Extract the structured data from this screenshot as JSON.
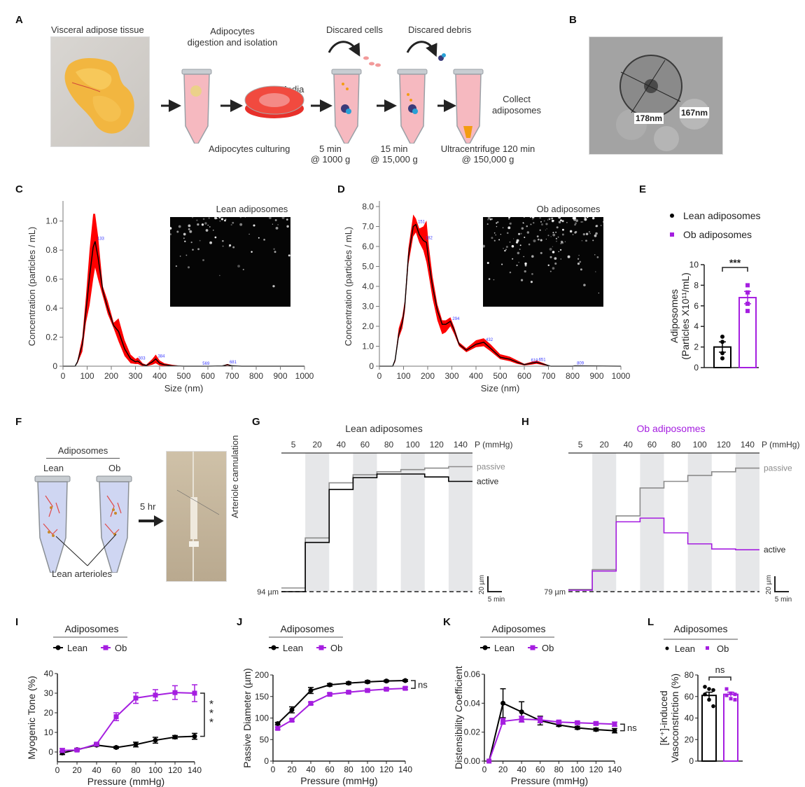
{
  "panels": {
    "A": {
      "label": "A",
      "tissue_title": "Visceral adipose tissue",
      "step1_title": "Adipocytes\ndigestion and isolation",
      "step1_line1": "Adipocytes",
      "step1_line2": "digestion and isolation",
      "culturing": "Adipocytes culturing",
      "media": "Media",
      "discard_cells": "Discared cells",
      "discard_debris": "Discared debris",
      "collect_line1": "Collect",
      "collect_line2": "adiposomes",
      "spin1_line1": "5 min",
      "spin1_line2": "@ 1000 g",
      "spin2_line1": "15 min",
      "spin2_line2": "@ 15,000 g",
      "spin3_line1": "Ultracentrifuge 120 min",
      "spin3_line2": "@ 150,000 g"
    },
    "B": {
      "label": "B",
      "measure1": "178nm",
      "measure2": "167nm"
    },
    "F": {
      "label": "F",
      "header": "Adiposomes",
      "lean": "Lean",
      "ob": "Ob",
      "arrow_label": "5 hr",
      "arterioles": "Lean arterioles",
      "cannulation": "Arteriole cannulation"
    },
    "C": {
      "label": "C"
    },
    "D": {
      "label": "D"
    },
    "E": {
      "label": "E"
    },
    "G": {
      "label": "G"
    },
    "H": {
      "label": "H"
    },
    "I": {
      "label": "I"
    },
    "J": {
      "label": "J"
    },
    "K": {
      "label": "K"
    },
    "L": {
      "label": "L"
    }
  },
  "colors": {
    "lean": "#000000",
    "ob": "#a51ee0",
    "nta_band": "#ff0000",
    "peak_label": "#3b3bff",
    "passive": "#8c8c8c",
    "shade": "#e6e7e9"
  },
  "chart_data": [
    {
      "id": "C",
      "type": "area",
      "title": "",
      "inset_title": "Lean adiposomes",
      "xlabel": "Size (nm)",
      "ylabel": "Concentration (particles / mL)",
      "xlim": [
        0,
        1000
      ],
      "ylim": [
        0,
        1.1
      ],
      "xticks": [
        0,
        100,
        200,
        300,
        400,
        500,
        600,
        700,
        800,
        900,
        1000
      ],
      "yticks": [
        0,
        0.2,
        0.4,
        0.6,
        0.8,
        1.0
      ],
      "ytick_labels": [
        "0",
        "0.2",
        "0.4",
        "0.6",
        "0.8",
        "1.0"
      ],
      "series": [
        {
          "name": "mean",
          "x": [
            0,
            50,
            60,
            80,
            95,
            110,
            125,
            133,
            145,
            165,
            185,
            210,
            230,
            255,
            280,
            300,
            310,
            330,
            345,
            370,
            384,
            400,
            420,
            450,
            500,
            560,
            600,
            660,
            681,
            700,
            740,
            1000
          ],
          "y": [
            0,
            0,
            0.03,
            0.15,
            0.38,
            0.62,
            0.82,
            0.86,
            0.75,
            0.52,
            0.4,
            0.28,
            0.24,
            0.12,
            0.05,
            0.03,
            0.035,
            0.01,
            0.005,
            0.03,
            0.05,
            0.02,
            0.01,
            0.003,
            0,
            0,
            0,
            0.002,
            0.01,
            0.003,
            0,
            0
          ]
        },
        {
          "name": "sem_upper",
          "x": [
            0,
            50,
            60,
            80,
            95,
            110,
            125,
            133,
            145,
            165,
            185,
            210,
            230,
            255,
            280,
            300,
            310,
            330,
            345,
            370,
            384,
            400,
            420,
            450,
            500,
            560,
            600,
            660,
            681,
            700,
            740,
            1000
          ],
          "y": [
            0,
            0,
            0.04,
            0.2,
            0.48,
            0.8,
            1.05,
            1.05,
            0.9,
            0.55,
            0.45,
            0.3,
            0.33,
            0.18,
            0.08,
            0.05,
            0.06,
            0.02,
            0.01,
            0.05,
            0.08,
            0.04,
            0.02,
            0.01,
            0,
            0,
            0,
            0.004,
            0.015,
            0.005,
            0,
            0
          ]
        },
        {
          "name": "sem_lower",
          "x": [
            0,
            50,
            60,
            80,
            95,
            110,
            125,
            133,
            145,
            165,
            185,
            210,
            230,
            255,
            280,
            300,
            310,
            330,
            345,
            370,
            384,
            400,
            420,
            450,
            500,
            560,
            600,
            660,
            681,
            700,
            740,
            1000
          ],
          "y": [
            0,
            0,
            0.02,
            0.1,
            0.3,
            0.42,
            0.6,
            0.68,
            0.6,
            0.48,
            0.36,
            0.26,
            0.17,
            0.07,
            0.02,
            0.015,
            0.015,
            0,
            0,
            0.01,
            0.02,
            0.005,
            0,
            0,
            0,
            0,
            0,
            0,
            0.005,
            0,
            0,
            0
          ]
        }
      ],
      "peak_labels": [
        {
          "x": 133,
          "y": 0.86,
          "text": "133"
        },
        {
          "x": 303,
          "y": 0.035,
          "text": "303"
        },
        {
          "x": 384,
          "y": 0.05,
          "text": "384"
        },
        {
          "x": 569,
          "y": 0.0,
          "text": "569"
        },
        {
          "x": 681,
          "y": 0.01,
          "text": "681"
        }
      ]
    },
    {
      "id": "D",
      "type": "area",
      "title": "",
      "inset_title": "Ob adiposomes",
      "xlabel": "Size (nm)",
      "ylabel": "Concentration (particles / mL)",
      "xlim": [
        0,
        1000
      ],
      "ylim": [
        0,
        8.0
      ],
      "xticks": [
        0,
        100,
        200,
        300,
        400,
        500,
        600,
        700,
        800,
        900,
        1000
      ],
      "yticks": [
        0,
        1,
        2,
        3,
        4,
        5,
        6,
        7,
        8
      ],
      "ytick_labels": [
        "0",
        "1.0",
        "2.0",
        "3.0",
        "4.0",
        "5.0",
        "6.0",
        "7.0",
        "8.0"
      ],
      "series": [
        {
          "name": "mean",
          "x": [
            0,
            55,
            65,
            80,
            95,
            105,
            120,
            140,
            151,
            165,
            182,
            195,
            205,
            220,
            240,
            260,
            275,
            294,
            310,
            330,
            360,
            400,
            432,
            460,
            500,
            540,
            570,
            600,
            630,
            651,
            680,
            710,
            800,
            809,
            1000
          ],
          "y": [
            0,
            0,
            0.3,
            1.6,
            2.2,
            3.0,
            5.5,
            7.0,
            7.1,
            6.6,
            6.3,
            6.2,
            5.2,
            4.0,
            2.8,
            2.1,
            2.1,
            2.25,
            1.8,
            1.1,
            0.8,
            1.1,
            1.2,
            0.9,
            0.45,
            0.35,
            0.2,
            0.08,
            0.15,
            0.2,
            0.1,
            0,
            0,
            0.02,
            0
          ]
        },
        {
          "name": "sem_upper",
          "x": [
            0,
            55,
            65,
            80,
            95,
            105,
            120,
            140,
            151,
            165,
            182,
            195,
            205,
            220,
            240,
            260,
            275,
            294,
            310,
            330,
            360,
            400,
            432,
            460,
            500,
            540,
            570,
            600,
            630,
            651,
            680,
            710,
            800,
            809,
            1000
          ],
          "y": [
            0,
            0,
            0.4,
            1.9,
            2.5,
            3.3,
            5.9,
            7.6,
            7.4,
            6.9,
            7.0,
            7.3,
            6.0,
            4.5,
            3.1,
            2.3,
            2.3,
            2.45,
            1.95,
            1.2,
            0.9,
            1.3,
            1.4,
            1.1,
            0.6,
            0.48,
            0.3,
            0.12,
            0.22,
            0.28,
            0.15,
            0,
            0,
            0.03,
            0
          ]
        },
        {
          "name": "sem_lower",
          "x": [
            0,
            55,
            65,
            80,
            95,
            105,
            120,
            140,
            151,
            165,
            182,
            195,
            205,
            220,
            240,
            260,
            275,
            294,
            310,
            330,
            360,
            400,
            432,
            460,
            500,
            540,
            570,
            600,
            630,
            651,
            680,
            710,
            800,
            809,
            1000
          ],
          "y": [
            0,
            0,
            0.2,
            1.4,
            1.9,
            2.7,
            5.1,
            6.5,
            6.7,
            6.2,
            5.8,
            5.2,
            4.5,
            3.4,
            2.3,
            1.6,
            1.7,
            2.0,
            1.6,
            1.0,
            0.7,
            0.95,
            1.0,
            0.75,
            0.35,
            0.25,
            0.12,
            0.04,
            0.08,
            0.12,
            0.05,
            0,
            0,
            0.01,
            0
          ]
        }
      ],
      "peak_labels": [
        {
          "x": 151,
          "y": 7.1,
          "text": "151"
        },
        {
          "x": 182,
          "y": 6.3,
          "text": "182"
        },
        {
          "x": 294,
          "y": 2.25,
          "text": "294"
        },
        {
          "x": 432,
          "y": 1.2,
          "text": "432"
        },
        {
          "x": 619,
          "y": 0.15,
          "text": "619"
        },
        {
          "x": 651,
          "y": 0.2,
          "text": "651"
        },
        {
          "x": 809,
          "y": 0.02,
          "text": "809"
        }
      ]
    },
    {
      "id": "E",
      "type": "bar",
      "legend": [
        {
          "name": "Lean adiposomes",
          "marker": "circle",
          "color": "#000000"
        },
        {
          "name": "Ob adiposomes",
          "marker": "square",
          "color": "#a51ee0"
        }
      ],
      "legend_position": "top",
      "categories": [
        "Lean adiposomes",
        "Ob adiposomes"
      ],
      "values": [
        2.0,
        6.8
      ],
      "sem": [
        0.5,
        0.6
      ],
      "points": [
        [
          3.0,
          2.5,
          1.4,
          0.9
        ],
        [
          8.0,
          7.3,
          6.2,
          5.5
        ]
      ],
      "ylabel_line1": "Adiposomes",
      "ylabel_line2": "(Particles X10¹¹/mL)",
      "ylim": [
        0,
        10
      ],
      "yticks": [
        0,
        2,
        4,
        6,
        8,
        10
      ],
      "significance": "***"
    },
    {
      "id": "G",
      "type": "line",
      "title": "Lean adiposomes",
      "pressure_steps": [
        "5",
        "20",
        "40",
        "60",
        "80",
        "100",
        "120",
        "140"
      ],
      "pressure_unit": "P (mmHg)",
      "baseline_label": "94 µm",
      "scale_y": "20 µm",
      "scale_x": "5 min",
      "series": [
        {
          "name": "passive",
          "label": "passive",
          "color": "#8c8c8c",
          "values_um_above_baseline": [
            5,
            73,
            148,
            159,
            163,
            166,
            168,
            170
          ]
        },
        {
          "name": "active",
          "label": "active",
          "color": "#000000",
          "values_um_above_baseline": [
            0,
            67,
            139,
            155,
            160,
            160,
            156,
            150
          ]
        }
      ]
    },
    {
      "id": "H",
      "type": "line",
      "title": "Ob adiposomes",
      "title_color": "#a51ee0",
      "pressure_steps": [
        "5",
        "20",
        "40",
        "60",
        "80",
        "100",
        "120",
        "140"
      ],
      "pressure_unit": "P (mmHg)",
      "baseline_label": "79 µm",
      "scale_y": "20 µm",
      "scale_x": "5 min",
      "series": [
        {
          "name": "passive",
          "label": "passive",
          "color": "#8c8c8c",
          "values_um_above_baseline": [
            3,
            30,
            103,
            141,
            150,
            158,
            163,
            168
          ]
        },
        {
          "name": "active",
          "label": "active",
          "color": "#a51ee0",
          "values_um_above_baseline": [
            2,
            28,
            95,
            100,
            80,
            65,
            58,
            57
          ]
        }
      ]
    },
    {
      "id": "I",
      "type": "line",
      "legend_header": "Adiposomes",
      "legend": [
        "Lean",
        "Ob"
      ],
      "xlabel": "Pressure (mmHg)",
      "ylabel": "Myogenic Tone (%)",
      "x": [
        5,
        20,
        40,
        60,
        80,
        100,
        120,
        140
      ],
      "xticks": [
        0,
        20,
        40,
        60,
        80,
        100,
        120,
        140
      ],
      "xlim": [
        0,
        140
      ],
      "ylim": [
        -5,
        40
      ],
      "yticks": [
        0,
        10,
        20,
        30,
        40
      ],
      "series": [
        {
          "name": "Lean",
          "values": [
            -0.5,
            1.2,
            3.5,
            2.3,
            3.8,
            6.0,
            7.6,
            8.0
          ],
          "sem": [
            0.8,
            0.6,
            0.6,
            0.5,
            1.2,
            1.5,
            0.8,
            1.5
          ]
        },
        {
          "name": "Ob",
          "values": [
            0.8,
            1.0,
            4.0,
            18.0,
            27.5,
            29.0,
            30.3,
            30.0
          ],
          "sem": [
            1.0,
            0.6,
            0.8,
            2.0,
            2.7,
            2.8,
            3.5,
            4.3
          ]
        }
      ],
      "significance": "***"
    },
    {
      "id": "J",
      "type": "line",
      "legend_header": "Adiposomes",
      "legend": [
        "Lean",
        "Ob"
      ],
      "xlabel": "Pressure (mmHg)",
      "ylabel": "Passive Diameter (µm)",
      "x": [
        5,
        20,
        40,
        60,
        80,
        100,
        120,
        140
      ],
      "xticks": [
        0,
        20,
        40,
        60,
        80,
        100,
        120,
        140
      ],
      "xlim": [
        0,
        140
      ],
      "ylim": [
        0,
        200
      ],
      "yticks": [
        0,
        50,
        100,
        150,
        200
      ],
      "series": [
        {
          "name": "Lean",
          "values": [
            87,
            119,
            164,
            177,
            181,
            184,
            186,
            187
          ],
          "sem": [
            3,
            7,
            7,
            3,
            3,
            3,
            2,
            2
          ]
        },
        {
          "name": "Ob",
          "values": [
            76,
            95,
            134,
            155,
            160,
            164,
            167,
            169
          ],
          "sem": [
            3,
            3,
            3,
            3,
            3,
            3,
            3,
            3
          ]
        }
      ],
      "significance": "ns"
    },
    {
      "id": "K",
      "type": "line",
      "legend_header": "Adiposomes",
      "legend": [
        "Lean",
        "Ob"
      ],
      "xlabel": "Pressure (mmHg)",
      "ylabel": "Distensibility Coefficient",
      "x": [
        5,
        20,
        40,
        60,
        80,
        100,
        120,
        140
      ],
      "xticks": [
        0,
        20,
        40,
        60,
        80,
        100,
        120,
        140
      ],
      "xlim": [
        0,
        140
      ],
      "ylim": [
        0,
        0.06
      ],
      "yticks": [
        0,
        0.02,
        0.04,
        0.06
      ],
      "ytick_labels": [
        "0.00",
        "0.02",
        "0.04",
        "0.06"
      ],
      "series": [
        {
          "name": "Lean",
          "values": [
            0,
            0.04,
            0.034,
            0.028,
            0.025,
            0.023,
            0.0218,
            0.021
          ],
          "sem": [
            0,
            0.01,
            0.007,
            0.003,
            0.001,
            0.001,
            0.001,
            0.0015
          ]
        },
        {
          "name": "Ob",
          "values": [
            0,
            0.0275,
            0.029,
            0.0285,
            0.027,
            0.0265,
            0.026,
            0.0255
          ],
          "sem": [
            0,
            0.002,
            0.002,
            0.002,
            0.001,
            0.001,
            0.001,
            0.0015
          ]
        }
      ],
      "significance": "ns"
    },
    {
      "id": "L",
      "type": "bar",
      "legend_header": "Adiposomes",
      "legend": [
        {
          "name": "Lean",
          "marker": "circle",
          "color": "#000000"
        },
        {
          "name": "Ob",
          "marker": "square",
          "color": "#a51ee0"
        }
      ],
      "categories": [
        "Lean",
        "Ob"
      ],
      "values": [
        61,
        62
      ],
      "sem": [
        3,
        2
      ],
      "points": [
        [
          69,
          67,
          66,
          62,
          57,
          51
        ],
        [
          67,
          63,
          62,
          61,
          58,
          57
        ]
      ],
      "ylabel_line1": "[K⁺]-induced",
      "ylabel_line2": "Vasoconstriction (%)",
      "ylim": [
        0,
        80
      ],
      "yticks": [
        0,
        20,
        40,
        60,
        80
      ],
      "significance": "ns"
    }
  ]
}
